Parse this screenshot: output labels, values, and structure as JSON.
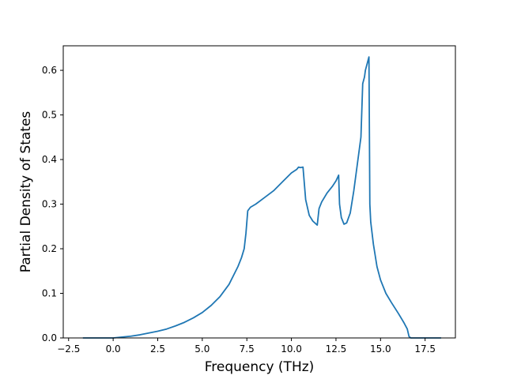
{
  "chart_data": {
    "type": "line",
    "title": "",
    "xlabel": "Frequency (THz)",
    "ylabel": "Partial Density of States",
    "xlim": [
      -2.8,
      19.2
    ],
    "ylim": [
      0.0,
      0.655
    ],
    "xticks": [
      -2.5,
      0.0,
      2.5,
      5.0,
      7.5,
      10.0,
      12.5,
      15.0,
      17.5
    ],
    "xtick_labels": [
      "−2.5",
      "0.0",
      "2.5",
      "5.0",
      "7.5",
      "10.0",
      "12.5",
      "15.0",
      "17.5"
    ],
    "yticks": [
      0.0,
      0.1,
      0.2,
      0.3,
      0.4,
      0.5,
      0.6
    ],
    "ytick_labels": [
      "0.0",
      "0.1",
      "0.2",
      "0.3",
      "0.4",
      "0.5",
      "0.6"
    ],
    "grid": false,
    "legend": "none",
    "line_color": "#1f77b4",
    "series": [
      {
        "x": [
          -1.7,
          0.0,
          0.5,
          1.0,
          1.5,
          2.0,
          2.5,
          3.0,
          3.5,
          4.0,
          4.5,
          5.0,
          5.5,
          6.0,
          6.5,
          7.0,
          7.2,
          7.35,
          7.45,
          7.55,
          7.7,
          8.0,
          8.5,
          9.0,
          9.5,
          10.0,
          10.3,
          10.4,
          10.5,
          10.65,
          10.8,
          11.0,
          11.2,
          11.45,
          11.55,
          11.7,
          12.0,
          12.3,
          12.5,
          12.65,
          12.7,
          12.8,
          12.95,
          13.1,
          13.3,
          13.5,
          13.7,
          13.9,
          14.0,
          14.1,
          14.15,
          14.25,
          14.35,
          14.4,
          14.45,
          14.6,
          14.8,
          15.0,
          15.3,
          15.6,
          16.0,
          16.3,
          16.5,
          16.6,
          16.7,
          17.0,
          18.4
        ],
        "y": [
          0.0,
          0.0,
          0.002,
          0.004,
          0.007,
          0.011,
          0.015,
          0.02,
          0.027,
          0.035,
          0.045,
          0.057,
          0.073,
          0.093,
          0.12,
          0.16,
          0.18,
          0.2,
          0.235,
          0.285,
          0.293,
          0.3,
          0.315,
          0.33,
          0.35,
          0.37,
          0.378,
          0.383,
          0.382,
          0.383,
          0.31,
          0.275,
          0.262,
          0.253,
          0.29,
          0.305,
          0.325,
          0.34,
          0.352,
          0.365,
          0.3,
          0.27,
          0.255,
          0.258,
          0.28,
          0.33,
          0.39,
          0.45,
          0.57,
          0.585,
          0.6,
          0.615,
          0.63,
          0.3,
          0.26,
          0.21,
          0.16,
          0.13,
          0.1,
          0.08,
          0.055,
          0.035,
          0.02,
          0.003,
          0.0,
          0.0,
          0.0
        ]
      }
    ]
  }
}
